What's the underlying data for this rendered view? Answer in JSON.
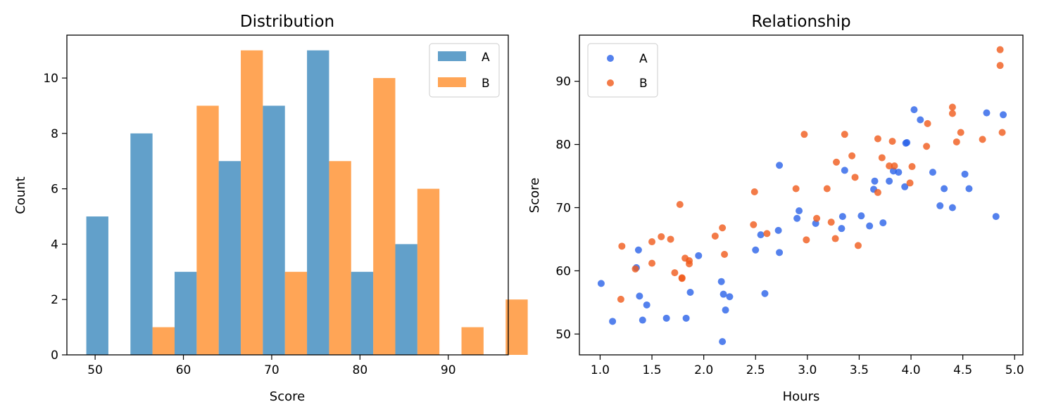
{
  "chart_data": [
    {
      "type": "bar",
      "title": "Distribution",
      "xlabel": "Score",
      "ylabel": "Count",
      "xlim": [
        46.8,
        96.8
      ],
      "ylim": [
        0,
        11.55
      ],
      "xticks": [
        50,
        60,
        70,
        80,
        90
      ],
      "yticks": [
        0,
        2,
        4,
        6,
        8,
        10
      ],
      "grid": false,
      "legend_position": "top-right",
      "bin_width": 5,
      "bin_starts": [
        49,
        54,
        59,
        64,
        69,
        74,
        79,
        84,
        89
      ],
      "series": [
        {
          "name": "A",
          "color": "#1f77b4",
          "values": [
            5,
            8,
            3,
            7,
            9,
            11,
            3,
            4,
            0
          ]
        },
        {
          "name": "B",
          "color": "#ff7f0e",
          "values": [
            0,
            1,
            9,
            11,
            3,
            7,
            10,
            6,
            1
          ]
        }
      ],
      "extra_bar": {
        "series": "B",
        "bin_start": 94,
        "value": 2
      }
    },
    {
      "type": "scatter",
      "title": "Relationship",
      "xlabel": "Hours",
      "ylabel": "Score",
      "xlim": [
        0.8,
        5.08
      ],
      "ylim": [
        46.7,
        97.3
      ],
      "xticks": [
        1.0,
        1.5,
        2.0,
        2.5,
        3.0,
        3.5,
        4.0,
        4.5,
        5.0
      ],
      "yticks": [
        50,
        60,
        70,
        80,
        90
      ],
      "grid": false,
      "legend_position": "top-left",
      "series": [
        {
          "name": "A",
          "color": "#2962e8",
          "points": [
            [
              1.01,
              58
            ],
            [
              1.12,
              52
            ],
            [
              1.37,
              63.3
            ],
            [
              1.35,
              60.5
            ],
            [
              1.38,
              56
            ],
            [
              1.41,
              52.2
            ],
            [
              1.45,
              54.6
            ],
            [
              1.64,
              52.5
            ],
            [
              1.83,
              52.5
            ],
            [
              1.87,
              56.6
            ],
            [
              1.95,
              62.4
            ],
            [
              2.17,
              58.3
            ],
            [
              2.19,
              56.3
            ],
            [
              2.21,
              53.8
            ],
            [
              2.18,
              48.8
            ],
            [
              2.25,
              55.9
            ],
            [
              2.5,
              63.3
            ],
            [
              2.55,
              65.7
            ],
            [
              2.59,
              56.4
            ],
            [
              2.72,
              66.4
            ],
            [
              2.73,
              62.9
            ],
            [
              2.73,
              76.7
            ],
            [
              2.9,
              68.3
            ],
            [
              2.92,
              69.5
            ],
            [
              3.08,
              67.5
            ],
            [
              3.33,
              66.7
            ],
            [
              3.34,
              68.6
            ],
            [
              3.36,
              75.9
            ],
            [
              3.52,
              68.7
            ],
            [
              3.6,
              67.1
            ],
            [
              3.64,
              72.9
            ],
            [
              3.65,
              74.2
            ],
            [
              3.73,
              67.6
            ],
            [
              3.79,
              74.2
            ],
            [
              3.83,
              75.8
            ],
            [
              3.88,
              75.6
            ],
            [
              3.94,
              73.3
            ],
            [
              3.95,
              80.2
            ],
            [
              3.96,
              80.3
            ],
            [
              4.03,
              85.5
            ],
            [
              4.09,
              83.9
            ],
            [
              4.21,
              75.6
            ],
            [
              4.28,
              70.3
            ],
            [
              4.32,
              73
            ],
            [
              4.4,
              70
            ],
            [
              4.52,
              75.3
            ],
            [
              4.56,
              73
            ],
            [
              4.73,
              85
            ],
            [
              4.82,
              68.6
            ],
            [
              4.89,
              84.7
            ]
          ]
        },
        {
          "name": "B",
          "color": "#f05a1a",
          "points": [
            [
              1.2,
              55.5
            ],
            [
              1.21,
              63.9
            ],
            [
              1.34,
              60.3
            ],
            [
              1.5,
              64.6
            ],
            [
              1.5,
              61.2
            ],
            [
              1.59,
              65.4
            ],
            [
              1.68,
              65
            ],
            [
              1.72,
              59.7
            ],
            [
              1.77,
              70.5
            ],
            [
              1.79,
              58.8
            ],
            [
              1.79,
              58.9
            ],
            [
              1.82,
              62
            ],
            [
              1.86,
              61.1
            ],
            [
              1.86,
              61.6
            ],
            [
              2.11,
              65.5
            ],
            [
              2.18,
              66.8
            ],
            [
              2.2,
              62.6
            ],
            [
              2.48,
              67.3
            ],
            [
              2.49,
              72.5
            ],
            [
              2.61,
              65.9
            ],
            [
              2.89,
              73
            ],
            [
              2.97,
              81.6
            ],
            [
              2.99,
              64.9
            ],
            [
              3.09,
              68.3
            ],
            [
              3.19,
              73
            ],
            [
              3.23,
              67.7
            ],
            [
              3.27,
              65.1
            ],
            [
              3.28,
              77.2
            ],
            [
              3.36,
              81.6
            ],
            [
              3.43,
              78.2
            ],
            [
              3.46,
              74.8
            ],
            [
              3.49,
              64
            ],
            [
              3.68,
              80.9
            ],
            [
              3.68,
              72.4
            ],
            [
              3.72,
              77.9
            ],
            [
              3.79,
              76.6
            ],
            [
              3.82,
              80.5
            ],
            [
              3.84,
              76.6
            ],
            [
              3.99,
              73.9
            ],
            [
              4.01,
              76.5
            ],
            [
              4.15,
              79.7
            ],
            [
              4.16,
              83.3
            ],
            [
              4.4,
              85.9
            ],
            [
              4.4,
              84.9
            ],
            [
              4.44,
              80.4
            ],
            [
              4.48,
              81.9
            ],
            [
              4.69,
              80.8
            ],
            [
              4.86,
              95
            ],
            [
              4.86,
              92.5
            ],
            [
              4.88,
              81.9
            ]
          ]
        }
      ]
    }
  ]
}
